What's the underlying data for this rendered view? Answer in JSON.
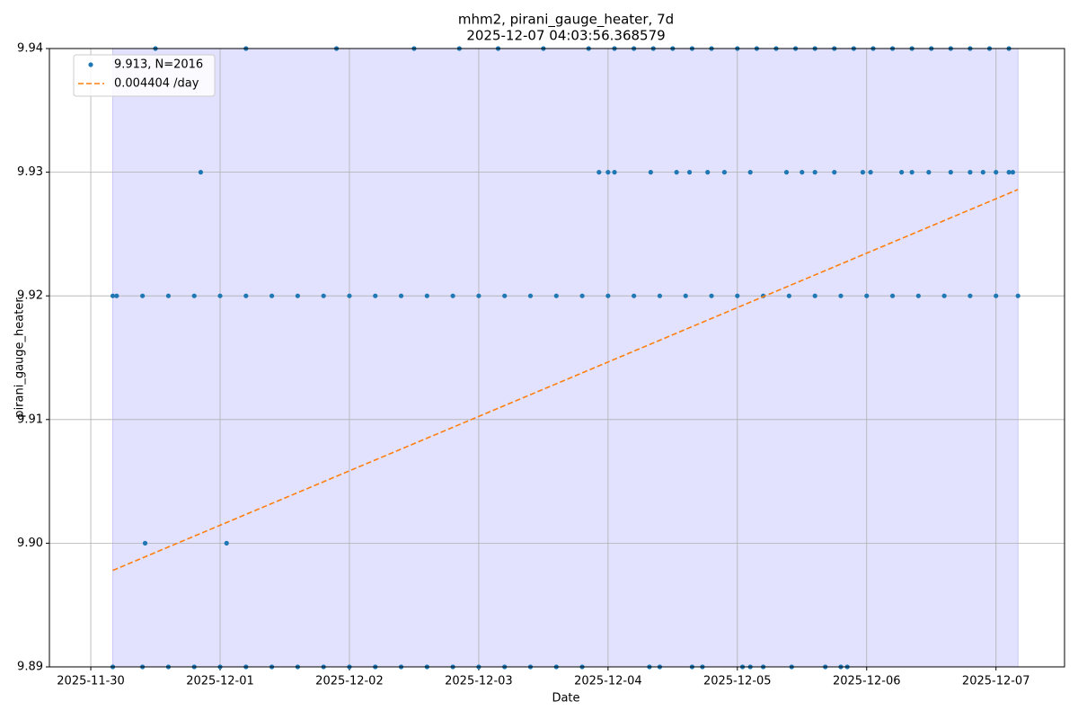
{
  "chart_data": {
    "type": "scatter",
    "title": "mhm2, pirani_gauge_heater, 7d",
    "subtitle": "2025-12-07 04:03:56.368579",
    "x_label": "Date",
    "y_label": "pirani_gauge_heater",
    "xlim": [
      -0.32,
      7.53
    ],
    "ylim": [
      9.89,
      9.94
    ],
    "xticks": [
      {
        "value": 0,
        "label": "2025-11-30"
      },
      {
        "value": 1,
        "label": "2025-12-01"
      },
      {
        "value": 2,
        "label": "2025-12-02"
      },
      {
        "value": 3,
        "label": "2025-12-03"
      },
      {
        "value": 4,
        "label": "2025-12-04"
      },
      {
        "value": 5,
        "label": "2025-12-05"
      },
      {
        "value": 6,
        "label": "2025-12-06"
      },
      {
        "value": 7,
        "label": "2025-12-07"
      }
    ],
    "yticks": [
      9.89,
      {
        "value": 9.9,
        "label": "9.90"
      },
      9.91,
      9.92,
      9.93,
      9.94
    ],
    "grid": true,
    "legend": "upper left",
    "shaded_xrange": [
      0.17,
      7.17
    ],
    "shade_color": "#e2e2ff",
    "series": [
      {
        "name": "9.913, N=2016",
        "type": "scatter",
        "color": "#1f77b4",
        "x": [
          0.17,
          0.2,
          0.4,
          0.6,
          0.8,
          1.0,
          1.2,
          1.4,
          1.6,
          1.8,
          2.0,
          2.2,
          2.4,
          2.6,
          2.8,
          3.0,
          3.2,
          3.4,
          3.6,
          3.8,
          4.0,
          4.2,
          4.4,
          4.6,
          4.8,
          5.0,
          5.2,
          5.4,
          5.6,
          5.8,
          6.0,
          6.2,
          6.4,
          6.6,
          6.8,
          7.0,
          7.17,
          0.17,
          0.4,
          0.6,
          0.8,
          1.0,
          1.2,
          1.4,
          1.6,
          1.8,
          2.0,
          2.2,
          2.4,
          2.6,
          2.8,
          3.0,
          3.2,
          3.4,
          3.6,
          3.8,
          4.32,
          4.4,
          4.65,
          4.73,
          5.04,
          5.1,
          5.2,
          5.42,
          5.68,
          5.8,
          5.85,
          0.5,
          1.2,
          1.9,
          2.5,
          2.85,
          3.15,
          3.5,
          3.85,
          4.05,
          4.2,
          4.35,
          4.5,
          4.65,
          4.8,
          5.0,
          5.15,
          5.3,
          5.45,
          5.6,
          5.75,
          5.9,
          6.05,
          6.2,
          6.35,
          6.5,
          6.65,
          6.8,
          6.95,
          7.1,
          0.85,
          3.93,
          4.0,
          4.05,
          4.33,
          4.53,
          4.63,
          4.77,
          4.9,
          5.1,
          5.38,
          5.5,
          5.6,
          5.75,
          5.97,
          6.03,
          6.27,
          6.35,
          6.48,
          6.65,
          6.8,
          6.9,
          7.0,
          7.1,
          7.13,
          0.42,
          1.05
        ],
        "values": [
          9.92,
          9.92,
          9.92,
          9.92,
          9.92,
          9.92,
          9.92,
          9.92,
          9.92,
          9.92,
          9.92,
          9.92,
          9.92,
          9.92,
          9.92,
          9.92,
          9.92,
          9.92,
          9.92,
          9.92,
          9.92,
          9.92,
          9.92,
          9.92,
          9.92,
          9.92,
          9.92,
          9.92,
          9.92,
          9.92,
          9.92,
          9.92,
          9.92,
          9.92,
          9.92,
          9.92,
          9.92,
          9.89,
          9.89,
          9.89,
          9.89,
          9.89,
          9.89,
          9.89,
          9.89,
          9.89,
          9.89,
          9.89,
          9.89,
          9.89,
          9.89,
          9.89,
          9.89,
          9.89,
          9.89,
          9.89,
          9.89,
          9.89,
          9.89,
          9.89,
          9.89,
          9.89,
          9.89,
          9.89,
          9.89,
          9.89,
          9.89,
          9.94,
          9.94,
          9.94,
          9.94,
          9.94,
          9.94,
          9.94,
          9.94,
          9.94,
          9.94,
          9.94,
          9.94,
          9.94,
          9.94,
          9.94,
          9.94,
          9.94,
          9.94,
          9.94,
          9.94,
          9.94,
          9.94,
          9.94,
          9.94,
          9.94,
          9.94,
          9.94,
          9.94,
          9.94,
          9.93,
          9.93,
          9.93,
          9.93,
          9.93,
          9.93,
          9.93,
          9.93,
          9.93,
          9.93,
          9.93,
          9.93,
          9.93,
          9.93,
          9.93,
          9.93,
          9.93,
          9.93,
          9.93,
          9.93,
          9.93,
          9.93,
          9.93,
          9.93,
          9.93,
          9.9,
          9.9
        ]
      },
      {
        "name": "0.004404 /day",
        "type": "line",
        "color": "#ff7f0e",
        "linestyle": "dashed",
        "x": [
          0.17,
          7.17
        ],
        "values": [
          9.8978,
          9.9286
        ]
      }
    ]
  }
}
